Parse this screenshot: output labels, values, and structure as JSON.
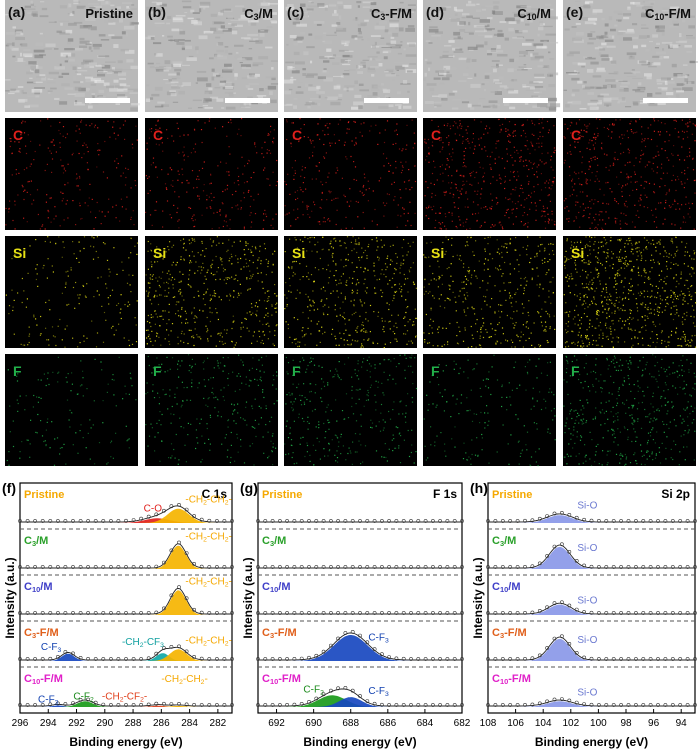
{
  "columns": [
    {
      "panel": "(a)",
      "sample_parts": [
        [
          "Pristine",
          ""
        ]
      ]
    },
    {
      "panel": "(b)",
      "sample_parts": [
        [
          "C",
          ""
        ],
        [
          "3",
          "sub"
        ],
        [
          "/M",
          ""
        ]
      ]
    },
    {
      "panel": "(c)",
      "sample_parts": [
        [
          "C",
          ""
        ],
        [
          "3",
          "sub"
        ],
        [
          "-F/M",
          ""
        ]
      ]
    },
    {
      "panel": "(d)",
      "sample_parts": [
        [
          "C",
          ""
        ],
        [
          "10",
          "sub"
        ],
        [
          "/M",
          ""
        ]
      ]
    },
    {
      "panel": "(e)",
      "sample_parts": [
        [
          "C",
          ""
        ],
        [
          "10",
          "sub"
        ],
        [
          "-F/M",
          ""
        ]
      ]
    }
  ],
  "eds_rows": [
    {
      "element": "C",
      "color": "#e0201c",
      "intensity": [
        0.25,
        0.28,
        0.3,
        0.55,
        0.5
      ]
    },
    {
      "element": "Si",
      "color": "#e6e014",
      "intensity": [
        0.2,
        0.55,
        0.5,
        0.45,
        0.85
      ]
    },
    {
      "element": "F",
      "color": "#22b04a",
      "intensity": [
        0.15,
        0.3,
        0.35,
        0.2,
        0.5
      ]
    }
  ],
  "sample_labels": [
    {
      "name": "Pristine",
      "parts": [
        [
          "Pristine",
          ""
        ]
      ],
      "color": "#f5a800"
    },
    {
      "name": "C3/M",
      "parts": [
        [
          "C",
          ""
        ],
        [
          "3",
          "sub"
        ],
        [
          "/M",
          ""
        ]
      ],
      "color": "#2aa02a"
    },
    {
      "name": "C10/M",
      "parts": [
        [
          "C",
          ""
        ],
        [
          "10",
          "sub"
        ],
        [
          "/M",
          ""
        ]
      ],
      "color": "#4040c8"
    },
    {
      "name": "C3-F/M",
      "parts": [
        [
          "C",
          ""
        ],
        [
          "3",
          "sub"
        ],
        [
          "-F/M",
          ""
        ]
      ],
      "color": "#e0601c"
    },
    {
      "name": "C10-F/M",
      "parts": [
        [
          "C",
          ""
        ],
        [
          "10",
          "sub"
        ],
        [
          "-F/M",
          ""
        ]
      ],
      "color": "#e020c8"
    }
  ],
  "chart_data": [
    {
      "panel": "(f)",
      "type": "line",
      "title": "C 1s",
      "xlabel": "Binding energy (eV)",
      "ylabel": "Intensity (a.u.)",
      "xlim": [
        296,
        281
      ],
      "xticks": [
        296,
        294,
        292,
        290,
        288,
        286,
        284,
        282
      ],
      "series": [
        {
          "sample": "Pristine",
          "components": [
            {
              "label": "C-O",
              "label_color": "#e0201c",
              "center": 286.3,
              "height": 0.18,
              "width": 0.9,
              "color": "#e0201c"
            },
            {
              "label": "-CH2-CH2-",
              "label_parts": [
                [
                  "-CH",
                  ""
                ],
                [
                  "2",
                  "sub"
                ],
                [
                  "-CH",
                  ""
                ],
                [
                  "2",
                  "sub"
                ],
                [
                  "-",
                  ""
                ]
              ],
              "label_color": "#f5a800",
              "center": 284.8,
              "height": 0.55,
              "width": 0.75,
              "color": "#f5b400"
            }
          ]
        },
        {
          "sample": "C3/M",
          "components": [
            {
              "label": "-CH2-CH2-",
              "label_parts": [
                [
                  "-CH",
                  ""
                ],
                [
                  "2",
                  "sub"
                ],
                [
                  "-CH",
                  ""
                ],
                [
                  "2",
                  "sub"
                ],
                [
                  "-",
                  ""
                ]
              ],
              "label_color": "#f5a800",
              "center": 284.8,
              "height": 0.9,
              "width": 0.55,
              "color": "#f5b400"
            }
          ]
        },
        {
          "sample": "C10/M",
          "components": [
            {
              "label": "-CH2-CH2-",
              "label_parts": [
                [
                  "-CH",
                  ""
                ],
                [
                  "2",
                  "sub"
                ],
                [
                  "-CH",
                  ""
                ],
                [
                  "2",
                  "sub"
                ],
                [
                  "-",
                  ""
                ]
              ],
              "label_color": "#f5a800",
              "center": 284.8,
              "height": 0.95,
              "width": 0.55,
              "color": "#f5b400"
            }
          ]
        },
        {
          "sample": "C3-F/M",
          "components": [
            {
              "label": "C-F3",
              "label_parts": [
                [
                  "C-F",
                  ""
                ],
                [
                  "3",
                  "sub"
                ]
              ],
              "label_color": "#1040b0",
              "center": 292.6,
              "height": 0.28,
              "width": 0.45,
              "color": "#1848c0"
            },
            {
              "label": "-CH2-CF3",
              "label_parts": [
                [
                  "-CH",
                  ""
                ],
                [
                  "2",
                  "sub"
                ],
                [
                  "-CF",
                  ""
                ],
                [
                  "3",
                  "sub"
                ]
              ],
              "label_color": "#10a0a0",
              "center": 285.9,
              "height": 0.3,
              "width": 0.45,
              "color": "#10a8a8"
            },
            {
              "label": "-CH2-CH2-",
              "label_parts": [
                [
                  "-CH",
                  ""
                ],
                [
                  "2",
                  "sub"
                ],
                [
                  "-CH",
                  ""
                ],
                [
                  "2",
                  "sub"
                ],
                [
                  "-",
                  ""
                ]
              ],
              "label_color": "#f5a800",
              "center": 284.8,
              "height": 0.45,
              "width": 0.6,
              "color": "#f5b400"
            }
          ]
        },
        {
          "sample": "C10-F/M",
          "components": [
            {
              "label": "C-F3",
              "label_parts": [
                [
                  "C-F",
                  ""
                ],
                [
                  "3",
                  "sub"
                ]
              ],
              "label_color": "#1040b0",
              "center": 293.3,
              "height": 0.06,
              "width": 0.4,
              "color": "#1848c0"
            },
            {
              "label": "C-F2",
              "label_parts": [
                [
                  "C-F",
                  ""
                ],
                [
                  "2",
                  "sub"
                ]
              ],
              "label_color": "#1a8a1a",
              "center": 291.4,
              "height": 0.22,
              "width": 0.55,
              "color": "#1a9a1a"
            },
            {
              "label": "-CH2-CF2-",
              "label_parts": [
                [
                  "-CH",
                  ""
                ],
                [
                  "2",
                  "sub"
                ],
                [
                  "-CF",
                  ""
                ],
                [
                  "2",
                  "sub"
                ],
                [
                  "-",
                  ""
                ]
              ],
              "label_color": "#e0401c",
              "center": 286.2,
              "height": 0.05,
              "width": 0.5,
              "color": "#e0401c"
            },
            {
              "label": "-CH2-CH2-",
              "label_parts": [
                [
                  "-CH",
                  ""
                ],
                [
                  "2",
                  "sub"
                ],
                [
                  "-CH",
                  ""
                ],
                [
                  "2",
                  "sub"
                ],
                [
                  "-",
                  ""
                ]
              ],
              "label_color": "#f5a800",
              "center": 284.8,
              "height": 0.04,
              "width": 0.5,
              "color": "#f5b400"
            }
          ]
        }
      ]
    },
    {
      "panel": "(g)",
      "type": "line",
      "title": "F 1s",
      "xlabel": "Binding energy (eV)",
      "ylabel": "Intensity (a.u.)",
      "xlim": [
        693,
        682
      ],
      "xticks": [
        692,
        690,
        688,
        686,
        684,
        682
      ],
      "series": [
        {
          "sample": "Pristine",
          "components": []
        },
        {
          "sample": "C3/M",
          "components": []
        },
        {
          "sample": "C10/M",
          "components": []
        },
        {
          "sample": "C3-F/M",
          "components": [
            {
              "label": "C-F3",
              "label_parts": [
                [
                  "C-F",
                  ""
                ],
                [
                  "3",
                  "sub"
                ]
              ],
              "label_color": "#1040b0",
              "center": 688.0,
              "height": 1.0,
              "width": 0.9,
              "color": "#1848c0"
            }
          ]
        },
        {
          "sample": "C10-F/M",
          "components": [
            {
              "label": "C-F2",
              "label_parts": [
                [
                  "C-F",
                  ""
                ],
                [
                  "2",
                  "sub"
                ]
              ],
              "label_color": "#1a8a1a",
              "center": 689.0,
              "height": 0.45,
              "width": 0.75,
              "color": "#1a9a1a"
            },
            {
              "label": "C-F3",
              "label_parts": [
                [
                  "C-F",
                  ""
                ],
                [
                  "3",
                  "sub"
                ]
              ],
              "label_color": "#1040b0",
              "center": 688.0,
              "height": 0.38,
              "width": 0.6,
              "color": "#1848c0"
            }
          ]
        }
      ]
    },
    {
      "panel": "(h)",
      "type": "line",
      "title": "Si 2p",
      "xlabel": "Binding energy (eV)",
      "ylabel": "Intensity (a.u.)",
      "xlim": [
        108,
        93
      ],
      "xticks": [
        108,
        106,
        104,
        102,
        100,
        98,
        96,
        94
      ],
      "series": [
        {
          "sample": "Pristine",
          "components": [
            {
              "label": "Si-O",
              "label_color": "#6a78d0",
              "center": 102.8,
              "height": 0.3,
              "width": 0.9,
              "color": "#8a98e8"
            }
          ]
        },
        {
          "sample": "C3/M",
          "components": [
            {
              "label": "Si-O",
              "label_color": "#6a78d0",
              "center": 102.8,
              "height": 0.85,
              "width": 0.75,
              "color": "#8a98e8"
            }
          ]
        },
        {
          "sample": "C10/M",
          "components": [
            {
              "label": "Si-O",
              "label_color": "#6a78d0",
              "center": 102.8,
              "height": 0.4,
              "width": 0.8,
              "color": "#8a98e8"
            }
          ]
        },
        {
          "sample": "C3-F/M",
          "components": [
            {
              "label": "Si-O",
              "label_color": "#6a78d0",
              "center": 102.8,
              "height": 0.85,
              "width": 0.75,
              "color": "#8a98e8"
            }
          ]
        },
        {
          "sample": "C10-F/M",
          "components": [
            {
              "label": "Si-O",
              "label_color": "#6a78d0",
              "center": 102.8,
              "height": 0.22,
              "width": 0.9,
              "color": "#8a98e8"
            }
          ]
        }
      ]
    }
  ]
}
